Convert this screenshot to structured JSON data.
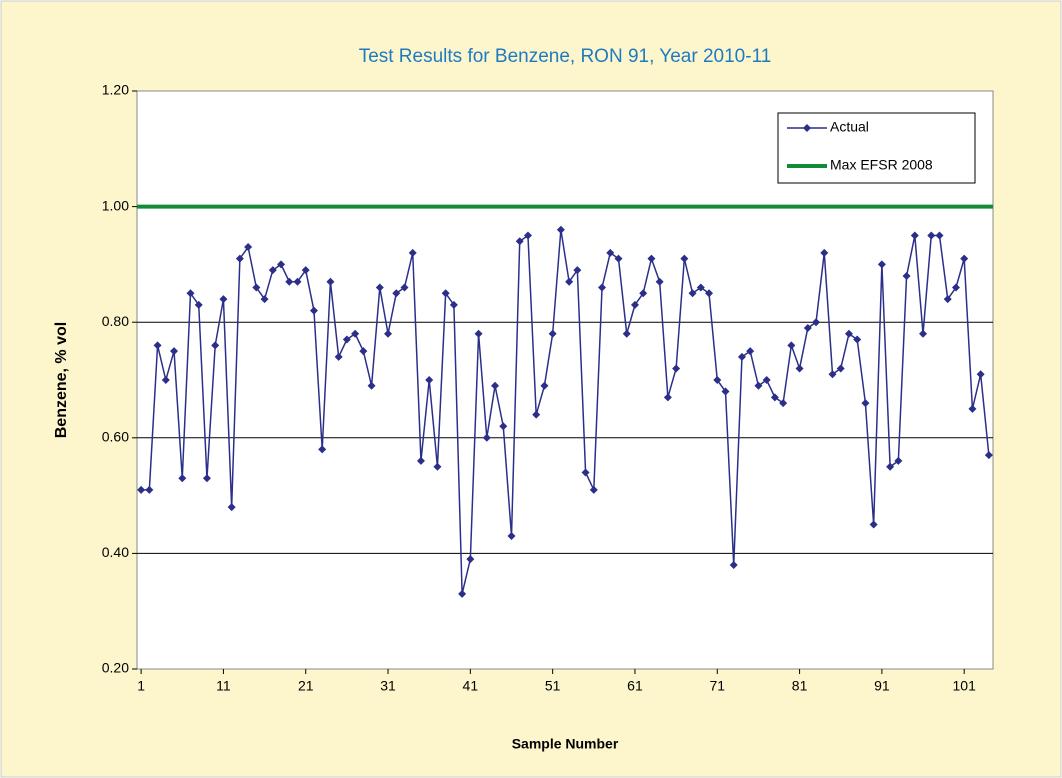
{
  "chart_data": {
    "type": "line",
    "title": "Test Results for Benzene, RON 91, Year 2010-11",
    "x_label": "Sample Number",
    "y_label": "Benzene, % vol",
    "categories": [
      "1",
      null,
      null,
      null,
      null,
      null,
      null,
      null,
      null,
      null,
      "11",
      null,
      null,
      null,
      null,
      null,
      null,
      null,
      null,
      null,
      "21",
      null,
      null,
      null,
      null,
      null,
      null,
      null,
      null,
      null,
      "31",
      null,
      null,
      null,
      null,
      null,
      null,
      null,
      null,
      null,
      "41",
      null,
      null,
      null,
      null,
      null,
      null,
      null,
      null,
      null,
      "51",
      null,
      null,
      null,
      null,
      null,
      null,
      null,
      null,
      null,
      "61",
      null,
      null,
      null,
      null,
      null,
      null,
      null,
      null,
      null,
      "71",
      null,
      null,
      null,
      null,
      null,
      null,
      null,
      null,
      null,
      "81",
      null,
      null,
      null,
      null,
      null,
      null,
      null,
      null,
      null,
      "91",
      null,
      null,
      null,
      null,
      null,
      null,
      null,
      null,
      null,
      "101",
      null,
      null,
      null
    ],
    "series": [
      {
        "name": "Actual",
        "color": "#2b2f8a",
        "values": [
          0.51,
          0.51,
          0.76,
          0.7,
          0.75,
          0.53,
          0.85,
          0.83,
          0.53,
          0.76,
          0.84,
          0.48,
          0.91,
          0.93,
          0.86,
          0.84,
          0.89,
          0.9,
          0.87,
          0.87,
          0.89,
          0.82,
          0.58,
          0.87,
          0.74,
          0.77,
          0.78,
          0.75,
          0.69,
          0.86,
          0.78,
          0.85,
          0.86,
          0.92,
          0.56,
          0.7,
          0.55,
          0.85,
          0.83,
          0.33,
          0.39,
          0.78,
          0.6,
          0.69,
          0.62,
          0.43,
          0.94,
          0.95,
          0.64,
          0.69,
          0.78,
          0.96,
          0.87,
          0.89,
          0.54,
          0.51,
          0.86,
          0.92,
          0.91,
          0.78,
          0.83,
          0.85,
          0.91,
          0.87,
          0.67,
          0.72,
          0.91,
          0.85,
          0.86,
          0.85,
          0.7,
          0.68,
          0.38,
          0.74,
          0.75,
          0.69,
          0.7,
          0.67,
          0.66,
          0.76,
          0.72,
          0.79,
          0.8,
          0.92,
          0.71,
          0.72,
          0.78,
          0.77,
          0.66,
          0.45,
          0.9,
          0.55,
          0.56,
          0.88,
          0.95,
          0.78,
          0.95,
          0.95,
          0.84,
          0.86,
          0.91,
          0.65,
          0.71,
          0.57
        ]
      }
    ],
    "reference_lines": [
      {
        "name": "Max EFSR 2008",
        "color": "#138a36",
        "value": 1.0
      }
    ],
    "ylim": [
      0.2,
      1.2
    ],
    "yticks": [
      {
        "value": 0.2,
        "label": "0.20"
      },
      {
        "value": 0.4,
        "label": "0.40"
      },
      {
        "value": 0.6,
        "label": "0.60"
      },
      {
        "value": 0.8,
        "label": "0.80"
      },
      {
        "value": 1.0,
        "label": "1.00"
      },
      {
        "value": 1.2,
        "label": "1.20"
      }
    ],
    "grid": true,
    "legend": "top-right"
  }
}
